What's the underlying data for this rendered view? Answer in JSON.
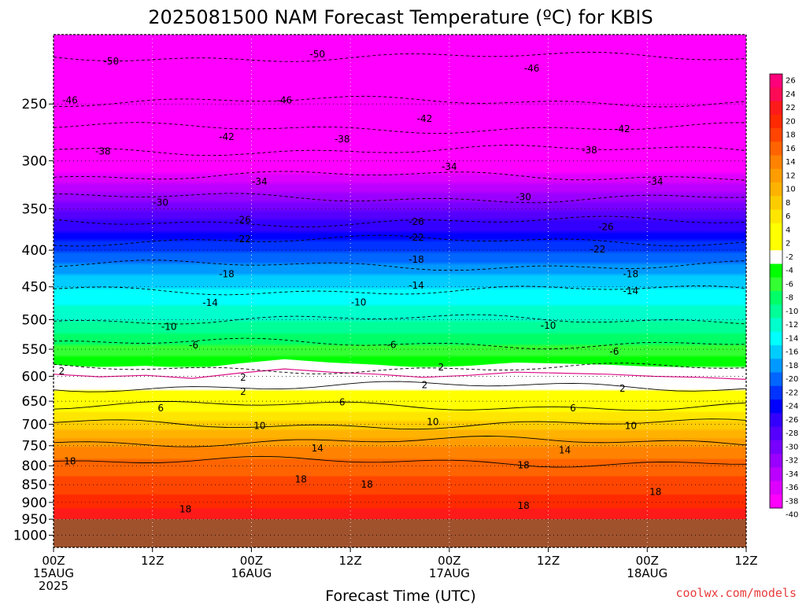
{
  "chart_data": {
    "type": "heatmap",
    "title": "2025081500 NAM Forecast Temperature (ºC) for KBIS",
    "xlabel": "Forecast Time (UTC)",
    "ylabel": "",
    "credit": "coolwx.com/models",
    "x_ticks": [
      {
        "hour": 0,
        "line1": "00Z",
        "line2": "15AUG",
        "line3": "2025"
      },
      {
        "hour": 12,
        "line1": "12Z",
        "line2": "",
        "line3": ""
      },
      {
        "hour": 24,
        "line1": "00Z",
        "line2": "16AUG",
        "line3": ""
      },
      {
        "hour": 36,
        "line1": "12Z",
        "line2": "",
        "line3": ""
      },
      {
        "hour": 48,
        "line1": "00Z",
        "line2": "17AUG",
        "line3": ""
      },
      {
        "hour": 60,
        "line1": "12Z",
        "line2": "",
        "line3": ""
      },
      {
        "hour": 72,
        "line1": "00Z",
        "line2": "18AUG",
        "line3": ""
      },
      {
        "hour": 84,
        "line1": "12Z",
        "line2": "",
        "line3": ""
      }
    ],
    "xlim_hours": [
      0,
      84
    ],
    "y_ticks": [
      250,
      300,
      350,
      400,
      450,
      500,
      550,
      600,
      650,
      700,
      750,
      800,
      850,
      900,
      950,
      1000
    ],
    "y_axis": "pressure (hPa), log scale, inverted",
    "ylim": [
      200,
      1040
    ],
    "grid": "dotted",
    "surface_pressure": 950,
    "colorbar_ticks": [
      26,
      24,
      22,
      20,
      18,
      16,
      14,
      12,
      10,
      8,
      6,
      4,
      2,
      -2,
      -4,
      -6,
      -8,
      -10,
      -12,
      -14,
      -16,
      -18,
      -20,
      -22,
      -24,
      -26,
      -28,
      -30,
      -32,
      -34,
      -36,
      -38,
      -40
    ],
    "colorbar_colors": [
      "#ff007a",
      "#ff0a55",
      "#ff1a1a",
      "#ff2a00",
      "#ff4500",
      "#ff6400",
      "#ff8200",
      "#ff9d00",
      "#ffb300",
      "#ffcc00",
      "#ffe600",
      "#ffff00",
      "#ffff00",
      "#ffffff",
      "#00ff00",
      "#33ff33",
      "#00ff66",
      "#00ff99",
      "#00ffcc",
      "#00ffff",
      "#00ccff",
      "#0099ff",
      "#0066ff",
      "#0033ff",
      "#0000ff",
      "#3300ff",
      "#5500ff",
      "#7700ff",
      "#9900ff",
      "#bb00ff",
      "#dd00ff",
      "#ff00ff"
    ],
    "contour_labels": [
      {
        "t": -50,
        "h": 7,
        "p": 218
      },
      {
        "t": -50,
        "h": 32,
        "p": 213
      },
      {
        "t": -46,
        "h": 2,
        "p": 247
      },
      {
        "t": -46,
        "h": 28,
        "p": 247
      },
      {
        "t": -46,
        "h": 58,
        "p": 223
      },
      {
        "t": -42,
        "h": 21,
        "p": 278
      },
      {
        "t": -42,
        "h": 45,
        "p": 262
      },
      {
        "t": -42,
        "h": 69,
        "p": 271
      },
      {
        "t": -38,
        "h": 6,
        "p": 291
      },
      {
        "t": -38,
        "h": 35,
        "p": 280
      },
      {
        "t": -38,
        "h": 65,
        "p": 290
      },
      {
        "t": -34,
        "h": 25,
        "p": 321
      },
      {
        "t": -34,
        "h": 48,
        "p": 306
      },
      {
        "t": -34,
        "h": 73,
        "p": 321
      },
      {
        "t": -30,
        "h": 13,
        "p": 343
      },
      {
        "t": -30,
        "h": 57,
        "p": 337
      },
      {
        "t": -26,
        "h": 23,
        "p": 363
      },
      {
        "t": -26,
        "h": 44,
        "p": 365
      },
      {
        "t": -26,
        "h": 67,
        "p": 371
      },
      {
        "t": -22,
        "h": 23,
        "p": 386
      },
      {
        "t": -22,
        "h": 44,
        "p": 384
      },
      {
        "t": -22,
        "h": 66,
        "p": 399
      },
      {
        "t": -18,
        "h": 21,
        "p": 432
      },
      {
        "t": -18,
        "h": 44,
        "p": 412
      },
      {
        "t": -18,
        "h": 70,
        "p": 432
      },
      {
        "t": -14,
        "h": 19,
        "p": 474
      },
      {
        "t": -14,
        "h": 44,
        "p": 448
      },
      {
        "t": -14,
        "h": 70,
        "p": 456
      },
      {
        "t": -10,
        "h": 14,
        "p": 512
      },
      {
        "t": -10,
        "h": 37,
        "p": 473
      },
      {
        "t": -10,
        "h": 60,
        "p": 510
      },
      {
        "t": -6,
        "h": 17,
        "p": 543
      },
      {
        "t": -6,
        "h": 41,
        "p": 542
      },
      {
        "t": -6,
        "h": 68,
        "p": 554
      },
      {
        "t": 2,
        "h": 1,
        "p": 590
      },
      {
        "t": 2,
        "h": 23,
        "p": 602
      },
      {
        "t": 2,
        "h": 47,
        "p": 583
      },
      {
        "t": 2,
        "h": 23,
        "p": 630
      },
      {
        "t": 2,
        "h": 45,
        "p": 617
      },
      {
        "t": 2,
        "h": 69,
        "p": 624
      },
      {
        "t": 6,
        "h": 13,
        "p": 665
      },
      {
        "t": 6,
        "h": 35,
        "p": 652
      },
      {
        "t": 6,
        "h": 63,
        "p": 665
      },
      {
        "t": 10,
        "h": 25,
        "p": 704
      },
      {
        "t": 10,
        "h": 46,
        "p": 695
      },
      {
        "t": 10,
        "h": 70,
        "p": 704
      },
      {
        "t": 14,
        "h": 32,
        "p": 756
      },
      {
        "t": 14,
        "h": 62,
        "p": 761
      },
      {
        "t": 18,
        "h": 2,
        "p": 788
      },
      {
        "t": 18,
        "h": 30,
        "p": 836
      },
      {
        "t": 18,
        "h": 38,
        "p": 850
      },
      {
        "t": 18,
        "h": 57,
        "p": 799
      },
      {
        "t": 18,
        "h": 73,
        "p": 870
      },
      {
        "t": 18,
        "h": 16,
        "p": 920
      },
      {
        "t": 18,
        "h": 57,
        "p": 910
      }
    ]
  }
}
